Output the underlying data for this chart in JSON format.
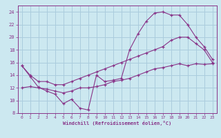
{
  "xlabel": "Windchill (Refroidissement éolien,°C)",
  "background_color": "#cce8f0",
  "grid_color": "#aaccdd",
  "line_color": "#883388",
  "hours": [
    0,
    1,
    2,
    3,
    4,
    5,
    6,
    7,
    8,
    9,
    10,
    11,
    12,
    13,
    14,
    15,
    16,
    17,
    18,
    19,
    20,
    21,
    22,
    23
  ],
  "line1": [
    15.5,
    13.8,
    12.1,
    11.5,
    11.0,
    9.5,
    10.2,
    8.8,
    8.5,
    14.0,
    13.0,
    13.2,
    13.5,
    18.0,
    20.5,
    22.5,
    23.8,
    24.0,
    23.5,
    23.5,
    22.0,
    20.0,
    18.5,
    16.5
  ],
  "line2": [
    15.5,
    14.0,
    13.0,
    13.0,
    12.5,
    12.5,
    13.0,
    13.5,
    14.0,
    14.5,
    15.0,
    15.5,
    16.0,
    16.5,
    17.0,
    17.5,
    18.0,
    18.5,
    19.5,
    20.0,
    20.0,
    19.0,
    18.0,
    16.0
  ],
  "line3": [
    12.0,
    12.2,
    12.0,
    11.8,
    11.5,
    11.2,
    11.5,
    12.0,
    12.0,
    12.2,
    12.5,
    13.0,
    13.2,
    13.5,
    14.0,
    14.5,
    15.0,
    15.2,
    15.5,
    15.8,
    15.5,
    15.8,
    15.7,
    15.8
  ],
  "ylim": [
    8,
    25
  ],
  "yticks": [
    8,
    10,
    12,
    14,
    16,
    18,
    20,
    22,
    24
  ],
  "xlim": [
    -0.5,
    23.5
  ],
  "xticks": [
    0,
    1,
    2,
    3,
    4,
    5,
    6,
    7,
    8,
    9,
    10,
    11,
    12,
    13,
    14,
    15,
    16,
    17,
    18,
    19,
    20,
    21,
    22,
    23
  ]
}
